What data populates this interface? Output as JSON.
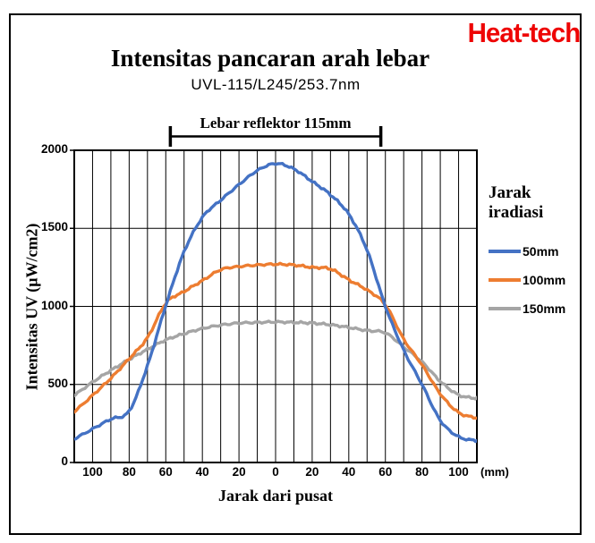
{
  "page": {
    "logo": "Heat-tech",
    "logo_color": "#ee0505",
    "background": "#ffffff"
  },
  "chart_data": {
    "type": "line",
    "title": "Intensitas pancaran arah lebar",
    "subtitle": "UVL-115/L245/253.7nm",
    "xlabel": "Jarak dari pusat",
    "ylabel": "Intensitas UV (μW/cm2)",
    "x_unit": "(mm)",
    "xlim": [
      -110,
      110
    ],
    "ylim": [
      0,
      2000
    ],
    "grid": "vertical every 10 mm, horizontal every 500",
    "legend_position": "right",
    "legend_title": "Jarak iradiasi",
    "x_tick_values": [
      -100,
      -80,
      -60,
      -40,
      -20,
      0,
      20,
      40,
      60,
      80,
      100
    ],
    "x_tick_labels": [
      "100",
      "80",
      "60",
      "40",
      "20",
      "0",
      "20",
      "40",
      "60",
      "80",
      "100"
    ],
    "y_ticks": [
      0,
      500,
      1000,
      1500,
      2000
    ],
    "y_tick_labels": [
      "0",
      "500",
      "1000",
      "1500",
      "2000"
    ],
    "annotation": {
      "label": "Lebar reflektor 115mm",
      "x_from": -57.5,
      "x_to": 57.5
    },
    "x": [
      -110,
      -100,
      -90,
      -80,
      -70,
      -60,
      -50,
      -40,
      -30,
      -20,
      -10,
      0,
      10,
      20,
      30,
      40,
      50,
      60,
      70,
      80,
      90,
      100,
      110
    ],
    "series": [
      {
        "name": "50mm",
        "color": "#4472C4",
        "values": [
          150,
          215,
          278,
          330,
          620,
          1005,
          1350,
          1570,
          1680,
          1780,
          1870,
          1915,
          1880,
          1800,
          1715,
          1590,
          1360,
          1000,
          720,
          500,
          270,
          165,
          140
        ]
      },
      {
        "name": "100mm",
        "color": "#ED7D31",
        "values": [
          325,
          430,
          540,
          665,
          800,
          1020,
          1095,
          1165,
          1235,
          1255,
          1265,
          1270,
          1265,
          1250,
          1240,
          1170,
          1105,
          1010,
          790,
          625,
          440,
          320,
          285
        ]
      },
      {
        "name": "150mm",
        "color": "#A5A5A5",
        "values": [
          430,
          515,
          590,
          660,
          725,
          785,
          825,
          858,
          880,
          893,
          897,
          900,
          897,
          893,
          882,
          865,
          845,
          830,
          740,
          645,
          520,
          433,
          410
        ]
      }
    ]
  }
}
